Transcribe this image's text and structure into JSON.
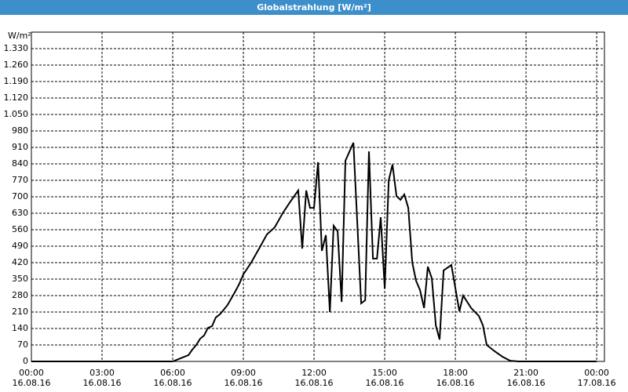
{
  "chart_data": {
    "type": "line",
    "title": "Globalstrahlung [W/m²]",
    "y_label": "W/m²",
    "x": [
      0,
      6,
      6.33,
      6.67,
      6.83,
      7,
      7.17,
      7.33,
      7.5,
      7.67,
      7.83,
      8,
      8.17,
      8.33,
      8.5,
      8.67,
      8.83,
      9,
      9.33,
      9.67,
      10,
      10.33,
      10.67,
      11,
      11.33,
      11.5,
      11.67,
      11.83,
      12,
      12.17,
      12.33,
      12.5,
      12.67,
      12.83,
      13,
      13.17,
      13.33,
      13.67,
      14,
      14.17,
      14.33,
      14.5,
      14.67,
      14.83,
      15,
      15.17,
      15.33,
      15.5,
      15.67,
      15.83,
      16,
      16.17,
      16.33,
      16.5,
      16.67,
      16.83,
      17,
      17.17,
      17.33,
      17.5,
      17.83,
      18.17,
      18.33,
      18.67,
      19,
      19.17,
      19.33,
      19.67,
      20,
      20.33,
      20.67,
      24
    ],
    "values": [
      0,
      0,
      13,
      27,
      50,
      70,
      97,
      110,
      143,
      150,
      187,
      200,
      220,
      240,
      270,
      300,
      330,
      370,
      420,
      480,
      540,
      570,
      630,
      680,
      727,
      480,
      727,
      653,
      653,
      847,
      470,
      537,
      210,
      577,
      553,
      253,
      853,
      930,
      247,
      260,
      893,
      437,
      437,
      613,
      310,
      770,
      837,
      703,
      687,
      710,
      653,
      420,
      343,
      303,
      227,
      403,
      353,
      153,
      93,
      387,
      410,
      213,
      280,
      227,
      193,
      153,
      70,
      43,
      20,
      3,
      0,
      0
    ],
    "color": "#000000",
    "xlim": [
      0,
      24.33
    ],
    "xticks": [
      {
        "value": 0,
        "label": "00:00\n16.08.16"
      },
      {
        "value": 3,
        "label": "03:00\n16.08.16"
      },
      {
        "value": 6,
        "label": "06:00\n16.08.16"
      },
      {
        "value": 9,
        "label": "09:00\n16.08.16"
      },
      {
        "value": 12,
        "label": "12:00\n16.08.16"
      },
      {
        "value": 15,
        "label": "15:00\n16.08.16"
      },
      {
        "value": 18,
        "label": "18:00\n16.08.16"
      },
      {
        "value": 21,
        "label": "21:00\n16.08.16"
      },
      {
        "value": 24,
        "label": "00:00\n17.08.16"
      }
    ],
    "ylim": [
      0,
      1400
    ],
    "yticks": [
      0,
      70,
      140,
      210,
      280,
      350,
      420,
      490,
      560,
      630,
      700,
      770,
      840,
      910,
      980,
      {
        "value": 1050,
        "label": "1.050"
      },
      {
        "value": 1120,
        "label": "1.120"
      },
      {
        "value": 1190,
        "label": "1.190"
      },
      {
        "value": 1260,
        "label": "1.260"
      },
      {
        "value": 1330,
        "label": "1.330"
      }
    ],
    "grid": true
  }
}
